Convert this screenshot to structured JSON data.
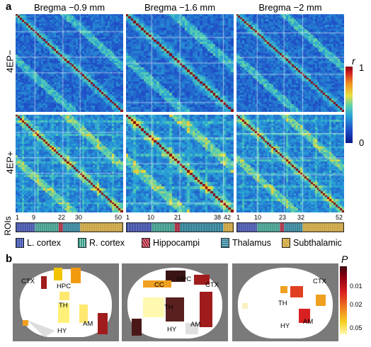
{
  "panel_a": {
    "letter": "a",
    "columns": [
      "Bregma −0.9 mm",
      "Bregma −1.6 mm",
      "Bregma −2 mm"
    ],
    "rows": [
      "4EP−",
      "4EP+"
    ],
    "colorbar": {
      "label": "r",
      "max": "1",
      "min": "0"
    },
    "rois_label": "ROIs",
    "roi_ticks": [
      [
        "1",
        "9",
        "22",
        "30",
        "50"
      ],
      [
        "1",
        "10",
        "21",
        "38",
        "42"
      ],
      [
        "1",
        "10",
        "23",
        "32",
        "52"
      ]
    ],
    "legend": [
      {
        "label": "L. cortex",
        "color": "#3f4fa8"
      },
      {
        "label": "R. cortex",
        "color": "#3c9a8a"
      },
      {
        "label": "Hippocampi",
        "color": "#a8243a"
      },
      {
        "label": "Thalamus",
        "color": "#2f7f96"
      },
      {
        "label": "Subthalamic",
        "color": "#c9a03a"
      }
    ]
  },
  "panel_b": {
    "letter": "b",
    "colorbar": {
      "label": "P",
      "ticks": [
        "0.01",
        "0.02",
        "0.05"
      ]
    },
    "brain1_labels": [
      "CTX",
      "HPC",
      "TH",
      "HY",
      "AM"
    ],
    "brain2_labels": [
      "CC",
      "HPC",
      "CTX",
      "TH",
      "AM",
      "HY"
    ],
    "brain3_labels": [
      "CTX",
      "TH",
      "HY",
      "AM"
    ]
  }
}
